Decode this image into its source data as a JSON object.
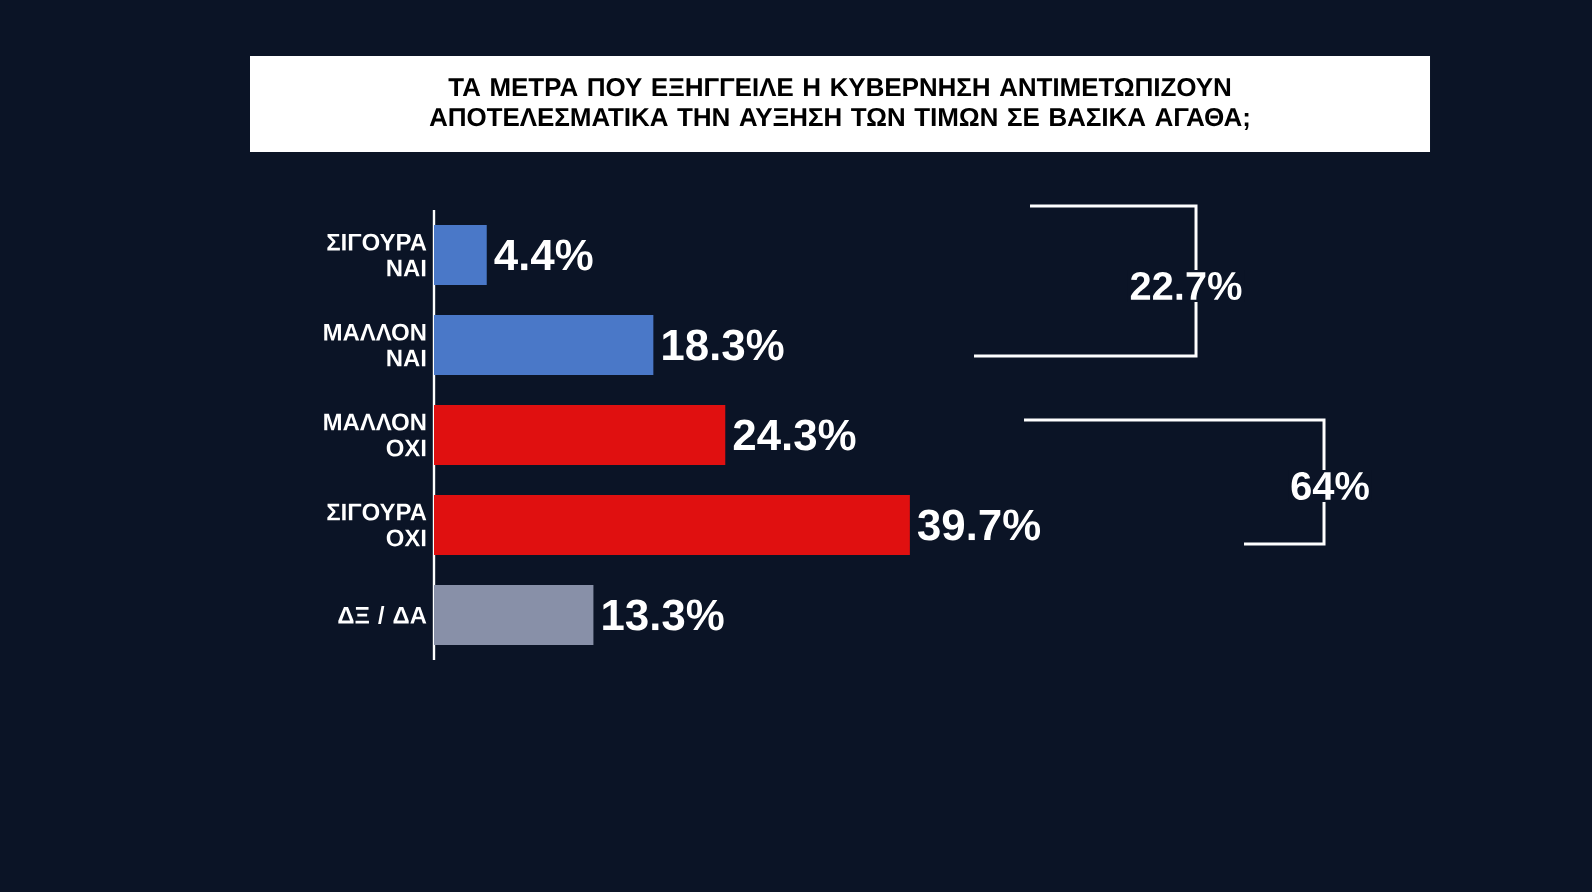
{
  "chart_data": {
    "type": "bar",
    "orientation": "horizontal",
    "title": "ΤΑ ΜΕΤΡΑ ΠΟΥ ΕΞΗΓΓΕΙΛΕ Η ΚΥΒΕΡΝΗΣΗ ΑΝΤΙΜΕΤΩΠΙΖΟΥΝ ΑΠΟΤΕΛΕΣΜΑΤΙΚΑ ΤΗΝ ΑΥΞΗΣΗ ΤΩΝ ΤΙΜΩΝ ΣΕ ΒΑΣΙΚΑ ΑΓΑΘΑ;",
    "categories": [
      "ΣΙΓΟΥΡΑ ΝΑΙ",
      "ΜΑΛΛΟΝ ΝΑΙ",
      "ΜΑΛΛΟΝ ΟΧΙ",
      "ΣΙΓΟΥΡΑ ΟΧΙ",
      "ΔΞ / ΔΑ"
    ],
    "values": [
      4.4,
      18.3,
      24.3,
      39.7,
      13.3
    ],
    "colors": [
      "#4a78c8",
      "#4a78c8",
      "#e01010",
      "#e01010",
      "#8890a8"
    ],
    "value_labels": [
      "4.4%",
      "18.3%",
      "24.3%",
      "39.7%",
      "13.3%"
    ],
    "annotations": [
      "22.7%",
      "64%"
    ]
  }
}
